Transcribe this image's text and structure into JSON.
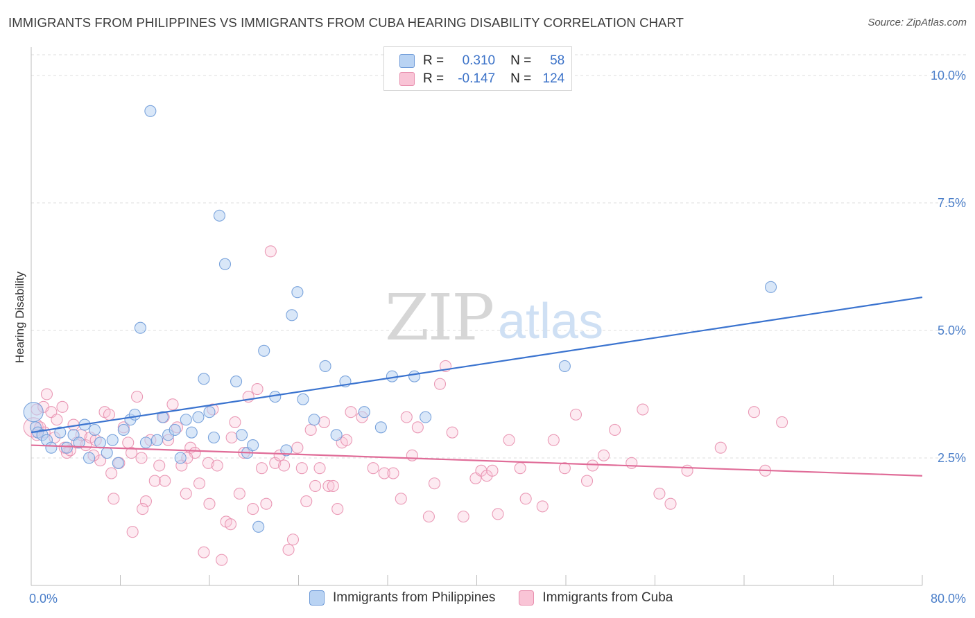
{
  "title": "IMMIGRANTS FROM PHILIPPINES VS IMMIGRANTS FROM CUBA HEARING DISABILITY CORRELATION CHART",
  "source": "Source: ZipAtlas.com",
  "watermark": {
    "zip": "ZIP",
    "atlas": "atlas"
  },
  "legend": {
    "philippines": {
      "r_label": "R =",
      "r_value": "0.310",
      "n_label": "N =",
      "n_value": "58"
    },
    "cuba": {
      "r_label": "R =",
      "r_value": "-0.147",
      "n_label": "N =",
      "n_value": "124"
    }
  },
  "colors": {
    "philippines_fill": "#b9d3f3",
    "philippines_stroke": "#6d9ad8",
    "philippines_line": "#3a73cf",
    "cuba_fill": "#f9c4d6",
    "cuba_stroke": "#e88fae",
    "cuba_line": "#e06c98",
    "grid": "#dddddd",
    "tick_text": "#4a7ec9"
  },
  "chart_data": {
    "type": "scatter",
    "ylabel": "Hearing Disability",
    "xlabel": "",
    "xlim": [
      0,
      80
    ],
    "ylim": [
      0,
      10.5
    ],
    "x_tick_labels": [
      "0.0%",
      "80.0%"
    ],
    "y_ticks": [
      {
        "value": 2.5,
        "label": "2.5%"
      },
      {
        "value": 5.0,
        "label": "5.0%"
      },
      {
        "value": 7.5,
        "label": "7.5%"
      },
      {
        "value": 10.0,
        "label": "10.0%"
      }
    ],
    "grid": "horizontal dashed",
    "legend_placement": "bottom-center",
    "series": [
      {
        "name": "Immigrants from Philippines",
        "trend": {
          "x": [
            0,
            80
          ],
          "y": [
            3.0,
            5.65
          ]
        },
        "points": [
          [
            0.2,
            3.4
          ],
          [
            0.4,
            3.1
          ],
          [
            0.6,
            3.0
          ],
          [
            1.0,
            2.95
          ],
          [
            1.4,
            2.85
          ],
          [
            1.8,
            2.7
          ],
          [
            2.6,
            3.0
          ],
          [
            3.2,
            2.7
          ],
          [
            3.8,
            2.95
          ],
          [
            4.3,
            2.8
          ],
          [
            4.8,
            3.15
          ],
          [
            5.2,
            2.5
          ],
          [
            5.7,
            3.05
          ],
          [
            6.2,
            2.8
          ],
          [
            6.8,
            2.6
          ],
          [
            7.3,
            2.85
          ],
          [
            7.8,
            2.4
          ],
          [
            8.3,
            3.05
          ],
          [
            8.9,
            3.25
          ],
          [
            9.3,
            3.35
          ],
          [
            9.8,
            5.05
          ],
          [
            10.3,
            2.8
          ],
          [
            10.7,
            9.3
          ],
          [
            11.3,
            2.85
          ],
          [
            11.8,
            3.3
          ],
          [
            12.3,
            2.95
          ],
          [
            12.9,
            3.05
          ],
          [
            13.4,
            2.5
          ],
          [
            13.9,
            3.25
          ],
          [
            14.4,
            3.0
          ],
          [
            15.0,
            3.3
          ],
          [
            15.5,
            4.05
          ],
          [
            16.0,
            3.4
          ],
          [
            16.4,
            2.9
          ],
          [
            16.9,
            7.25
          ],
          [
            17.4,
            6.3
          ],
          [
            18.4,
            4.0
          ],
          [
            18.9,
            2.95
          ],
          [
            19.4,
            2.6
          ],
          [
            19.9,
            2.75
          ],
          [
            20.4,
            1.15
          ],
          [
            20.9,
            4.6
          ],
          [
            21.9,
            3.7
          ],
          [
            22.9,
            2.65
          ],
          [
            23.4,
            5.3
          ],
          [
            23.9,
            5.75
          ],
          [
            24.4,
            3.65
          ],
          [
            25.4,
            3.25
          ],
          [
            26.4,
            4.3
          ],
          [
            27.4,
            2.95
          ],
          [
            28.2,
            4.0
          ],
          [
            29.9,
            3.4
          ],
          [
            31.4,
            3.1
          ],
          [
            32.4,
            4.1
          ],
          [
            34.4,
            4.1
          ],
          [
            35.4,
            3.3
          ],
          [
            47.9,
            4.3
          ],
          [
            66.4,
            5.85
          ]
        ]
      },
      {
        "name": "Immigrants from Cuba",
        "trend": {
          "x": [
            0,
            80
          ],
          "y": [
            2.75,
            2.15
          ]
        },
        "points": [
          [
            0.2,
            3.1
          ],
          [
            0.5,
            3.45
          ],
          [
            0.8,
            3.1
          ],
          [
            1.1,
            3.5
          ],
          [
            1.4,
            3.75
          ],
          [
            1.8,
            3.4
          ],
          [
            2.3,
            3.25
          ],
          [
            2.8,
            3.5
          ],
          [
            3.2,
            2.6
          ],
          [
            3.5,
            2.65
          ],
          [
            3.8,
            3.15
          ],
          [
            4.1,
            2.8
          ],
          [
            4.5,
            2.95
          ],
          [
            4.9,
            2.75
          ],
          [
            5.3,
            2.9
          ],
          [
            5.8,
            2.85
          ],
          [
            6.2,
            2.45
          ],
          [
            6.6,
            3.4
          ],
          [
            7.0,
            3.35
          ],
          [
            7.4,
            1.7
          ],
          [
            7.9,
            2.4
          ],
          [
            8.3,
            3.1
          ],
          [
            8.7,
            2.8
          ],
          [
            9.1,
            1.05
          ],
          [
            9.5,
            3.7
          ],
          [
            9.9,
            2.5
          ],
          [
            10.3,
            1.65
          ],
          [
            10.7,
            2.85
          ],
          [
            11.1,
            2.05
          ],
          [
            11.5,
            2.35
          ],
          [
            11.9,
            3.3
          ],
          [
            12.3,
            2.85
          ],
          [
            12.7,
            3.55
          ],
          [
            13.1,
            3.1
          ],
          [
            13.5,
            2.35
          ],
          [
            13.9,
            1.8
          ],
          [
            14.3,
            2.7
          ],
          [
            14.7,
            2.6
          ],
          [
            15.1,
            2.0
          ],
          [
            15.5,
            0.65
          ],
          [
            15.9,
            2.4
          ],
          [
            16.3,
            3.45
          ],
          [
            16.7,
            2.35
          ],
          [
            17.1,
            0.5
          ],
          [
            17.5,
            1.25
          ],
          [
            17.9,
            1.2
          ],
          [
            18.3,
            3.2
          ],
          [
            18.7,
            1.8
          ],
          [
            19.1,
            2.6
          ],
          [
            19.5,
            3.7
          ],
          [
            19.9,
            1.5
          ],
          [
            20.3,
            3.85
          ],
          [
            20.7,
            2.3
          ],
          [
            21.1,
            1.6
          ],
          [
            21.5,
            6.55
          ],
          [
            21.9,
            2.4
          ],
          [
            22.3,
            2.55
          ],
          [
            22.7,
            2.35
          ],
          [
            23.1,
            0.7
          ],
          [
            23.5,
            0.9
          ],
          [
            23.9,
            2.7
          ],
          [
            24.3,
            2.3
          ],
          [
            24.7,
            1.65
          ],
          [
            25.1,
            3.05
          ],
          [
            25.5,
            1.95
          ],
          [
            25.9,
            2.3
          ],
          [
            26.3,
            3.2
          ],
          [
            26.7,
            1.95
          ],
          [
            27.1,
            1.95
          ],
          [
            27.5,
            1.5
          ],
          [
            27.9,
            2.8
          ],
          [
            28.3,
            2.85
          ],
          [
            28.7,
            3.4
          ],
          [
            29.7,
            3.3
          ],
          [
            30.7,
            2.3
          ],
          [
            31.7,
            2.2
          ],
          [
            32.5,
            2.2
          ],
          [
            33.2,
            1.7
          ],
          [
            33.7,
            3.3
          ],
          [
            34.2,
            2.55
          ],
          [
            34.7,
            3.1
          ],
          [
            35.7,
            1.35
          ],
          [
            36.2,
            2.0
          ],
          [
            36.7,
            3.95
          ],
          [
            37.2,
            4.3
          ],
          [
            37.8,
            3.0
          ],
          [
            38.8,
            1.35
          ],
          [
            39.9,
            2.1
          ],
          [
            40.4,
            2.25
          ],
          [
            40.9,
            2.15
          ],
          [
            41.4,
            2.25
          ],
          [
            41.9,
            1.4
          ],
          [
            42.9,
            2.85
          ],
          [
            43.9,
            2.3
          ],
          [
            44.4,
            1.7
          ],
          [
            45.9,
            1.55
          ],
          [
            46.9,
            2.85
          ],
          [
            47.9,
            2.3
          ],
          [
            48.9,
            3.35
          ],
          [
            49.9,
            2.05
          ],
          [
            50.4,
            2.35
          ],
          [
            51.4,
            2.55
          ],
          [
            52.4,
            3.05
          ],
          [
            53.9,
            2.4
          ],
          [
            54.9,
            3.45
          ],
          [
            56.4,
            1.8
          ],
          [
            57.4,
            1.6
          ],
          [
            58.9,
            2.25
          ],
          [
            61.9,
            2.7
          ],
          [
            64.9,
            3.4
          ],
          [
            65.9,
            2.25
          ],
          [
            67.4,
            3.2
          ],
          [
            0.5,
            2.95
          ],
          [
            1.2,
            3.0
          ],
          [
            2.1,
            2.9
          ],
          [
            3.0,
            2.7
          ],
          [
            5.6,
            2.55
          ],
          [
            7.2,
            2.2
          ],
          [
            9.0,
            2.6
          ],
          [
            10.0,
            1.5
          ],
          [
            12.0,
            2.05
          ],
          [
            14.0,
            2.5
          ],
          [
            16.0,
            1.6
          ],
          [
            18.0,
            2.9
          ]
        ]
      }
    ]
  }
}
